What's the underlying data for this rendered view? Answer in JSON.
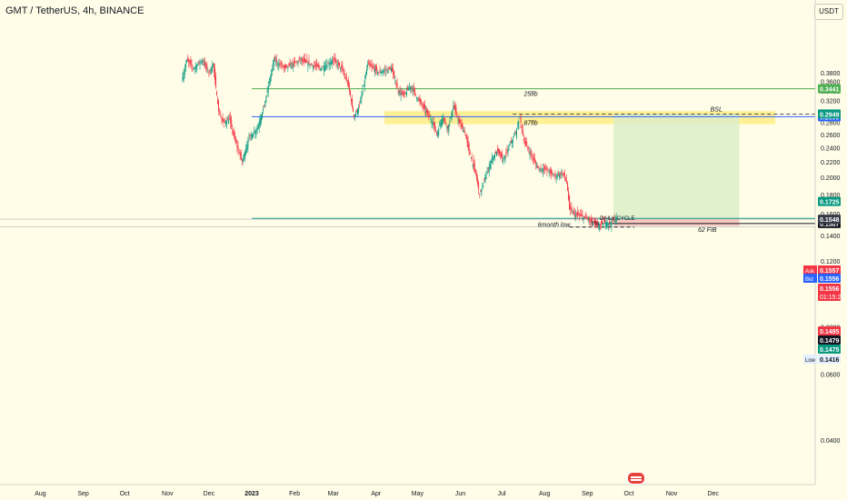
{
  "header": {
    "title": "GMT / TetherUS, 4h, BINANCE",
    "currency": "USDT"
  },
  "chart_data": {
    "type": "candlestick",
    "symbol": "GMT / TetherUS",
    "interval": "4h",
    "exchange": "BINANCE",
    "y_scale": "log",
    "ylim": [
      0.038,
      0.41
    ],
    "y_ticks": [
      "0.3800",
      "0.3600",
      "0.3400",
      "0.3200",
      "0.3000",
      "0.2800",
      "0.2600",
      "0.2400",
      "0.2200",
      "0.2000",
      "0.1800",
      "0.1600",
      "0.1555",
      "0.1400",
      "0.1200",
      "0.1000",
      "0.0800",
      "0.0600",
      "0.0400"
    ],
    "x_labels": [
      "Aug",
      "Sep",
      "Oct",
      "Nov",
      "Dec",
      "2023",
      "Feb",
      "Mar",
      "Apr",
      "May",
      "Jun",
      "Jul",
      "Aug",
      "Sep",
      "Oct",
      "Nov",
      "Dec"
    ],
    "price_path": [
      [
        "2022-11-12",
        0.37
      ],
      [
        "2022-11-15",
        0.41
      ],
      [
        "2022-11-20",
        0.39
      ],
      [
        "2022-11-26",
        0.41
      ],
      [
        "2022-12-01",
        0.38
      ],
      [
        "2022-12-04",
        0.4
      ],
      [
        "2022-12-08",
        0.3
      ],
      [
        "2022-12-11",
        0.28
      ],
      [
        "2022-12-16",
        0.285
      ],
      [
        "2022-12-20",
        0.25
      ],
      [
        "2022-12-25",
        0.22
      ],
      [
        "2022-12-30",
        0.255
      ],
      [
        "2023-01-05",
        0.27
      ],
      [
        "2023-01-10",
        0.31
      ],
      [
        "2023-01-13",
        0.35
      ],
      [
        "2023-01-17",
        0.41
      ],
      [
        "2023-01-25",
        0.39
      ],
      [
        "2023-02-05",
        0.41
      ],
      [
        "2023-02-20",
        0.39
      ],
      [
        "2023-03-01",
        0.41
      ],
      [
        "2023-03-07",
        0.39
      ],
      [
        "2023-03-12",
        0.35
      ],
      [
        "2023-03-16",
        0.29
      ],
      [
        "2023-03-20",
        0.31
      ],
      [
        "2023-03-26",
        0.4
      ],
      [
        "2023-04-03",
        0.38
      ],
      [
        "2023-04-12",
        0.39
      ],
      [
        "2023-04-17",
        0.34
      ],
      [
        "2023-04-21",
        0.33
      ],
      [
        "2023-04-26",
        0.35
      ],
      [
        "2023-05-02",
        0.32
      ],
      [
        "2023-05-07",
        0.3
      ],
      [
        "2023-05-12",
        0.28
      ],
      [
        "2023-05-15",
        0.26
      ],
      [
        "2023-05-19",
        0.29
      ],
      [
        "2023-05-23",
        0.27
      ],
      [
        "2023-05-27",
        0.31
      ],
      [
        "2023-05-31",
        0.28
      ],
      [
        "2023-06-04",
        0.265
      ],
      [
        "2023-06-08",
        0.23
      ],
      [
        "2023-06-12",
        0.205
      ],
      [
        "2023-06-15",
        0.18
      ],
      [
        "2023-06-19",
        0.2
      ],
      [
        "2023-06-24",
        0.225
      ],
      [
        "2023-06-28",
        0.235
      ],
      [
        "2023-07-02",
        0.222
      ],
      [
        "2023-07-07",
        0.245
      ],
      [
        "2023-07-11",
        0.262
      ],
      [
        "2023-07-14",
        0.29
      ],
      [
        "2023-07-17",
        0.25
      ],
      [
        "2023-07-22",
        0.23
      ],
      [
        "2023-07-27",
        0.212
      ],
      [
        "2023-08-02",
        0.21
      ],
      [
        "2023-08-08",
        0.202
      ],
      [
        "2023-08-14",
        0.205
      ],
      [
        "2023-08-17",
        0.195
      ],
      [
        "2023-08-19",
        0.165
      ],
      [
        "2023-08-22",
        0.16
      ],
      [
        "2023-08-27",
        0.158
      ],
      [
        "2023-09-01",
        0.155
      ],
      [
        "2023-09-05",
        0.152
      ],
      [
        "2023-09-09",
        0.148
      ],
      [
        "2023-09-13",
        0.152
      ],
      [
        "2023-09-17",
        0.151
      ],
      [
        "2023-09-22",
        0.1556
      ]
    ],
    "horizontal_levels": [
      {
        "name": "25fib",
        "label": "25fib",
        "price": 0.3441,
        "color": "#4caf50",
        "badge": "0.3441"
      },
      {
        "name": "87fib",
        "label": "87fib",
        "price": 0.2899,
        "color": "#2962ff",
        "badge": "0.2899"
      },
      {
        "name": "6month low",
        "label": "6month low",
        "price": 0.1555,
        "color": "#089981"
      },
      {
        "name": "62 FIB",
        "label": "62 FIB",
        "price": 0.1507,
        "color": "#131722",
        "badge": "0.1507"
      }
    ],
    "annotations": {
      "bsl": "BSL",
      "ssl": "SSL",
      "daily_cycle": "DAILY CYCLE"
    },
    "zones": {
      "supply_zone": {
        "from": "2023-04-07",
        "to": "2024-01-15",
        "top": 0.3,
        "bottom": 0.277,
        "color": "#ffeb7a"
      },
      "position_profit": {
        "from": "2023-09-20",
        "to": "2023-12-20",
        "top": 0.2949,
        "bottom": 0.1548,
        "color": "#dcedc8"
      },
      "position_stop": {
        "from": "2023-09-20",
        "to": "2023-12-20",
        "top": 0.1548,
        "bottom": 0.1485,
        "color": "#f8c9c0"
      }
    },
    "price_badges": [
      {
        "value": "0.2949",
        "color": "#089981"
      },
      {
        "value": "0.1725",
        "color": "#089981"
      },
      {
        "value": "0.1557",
        "color": "#f23645",
        "tag": "Ask"
      },
      {
        "value": "0.1556",
        "color": "#2962ff",
        "tag": "Bid"
      },
      {
        "value": "0.1556",
        "color": "#f23645",
        "sub": "01:15:22"
      },
      {
        "value": "0.1548",
        "color": "#363a45"
      },
      {
        "value": "0.1485",
        "color": "#f23645"
      },
      {
        "value": "0.1479",
        "color": "#131722"
      },
      {
        "value": "0.1475",
        "color": "#089981"
      },
      {
        "value": "0.1416",
        "color": "#e3effd",
        "tag": "Low"
      }
    ]
  }
}
